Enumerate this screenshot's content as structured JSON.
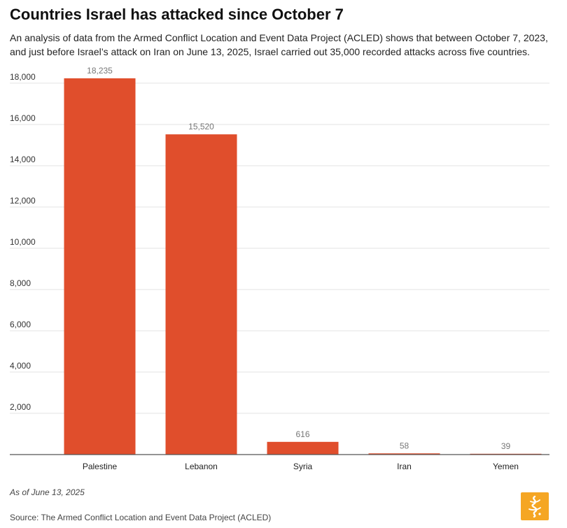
{
  "title": "Countries Israel has attacked since October 7",
  "subtitle": "An analysis of data from the Armed Conflict Location and Event Data Project (ACLED) shows that between October 7, 2023, and just before Israel’s attack on Iran on June 13, 2025, Israel carried out 35,000 recorded attacks across five countries.",
  "note": "As of June 13, 2025",
  "source": "Source: The Armed Conflict Location and Event Data Project (ACLED)",
  "colors": {
    "bar": "#e04e2c",
    "grid": "#e3e3e3",
    "axis": "#555555",
    "logo": "#f5a623"
  },
  "logo_icon": "al-jazeera-logo-icon",
  "chart_data": {
    "type": "bar",
    "title": "Countries Israel has attacked since October 7",
    "categories": [
      "Palestine",
      "Lebanon",
      "Syria",
      "Iran",
      "Yemen"
    ],
    "values": [
      18235,
      15520,
      616,
      58,
      39
    ],
    "data_labels": [
      "18,235",
      "15,520",
      "616",
      "58",
      "39"
    ],
    "yticks": [
      2000,
      4000,
      6000,
      8000,
      10000,
      12000,
      14000,
      16000,
      18000
    ],
    "ytick_labels": [
      "2,000",
      "4,000",
      "6,000",
      "8,000",
      "10,000",
      "12,000",
      "14,000",
      "16,000",
      "18,000"
    ],
    "ylim": [
      0,
      18235
    ],
    "xlabel": "",
    "ylabel": "",
    "grid": true,
    "legend": "none"
  }
}
